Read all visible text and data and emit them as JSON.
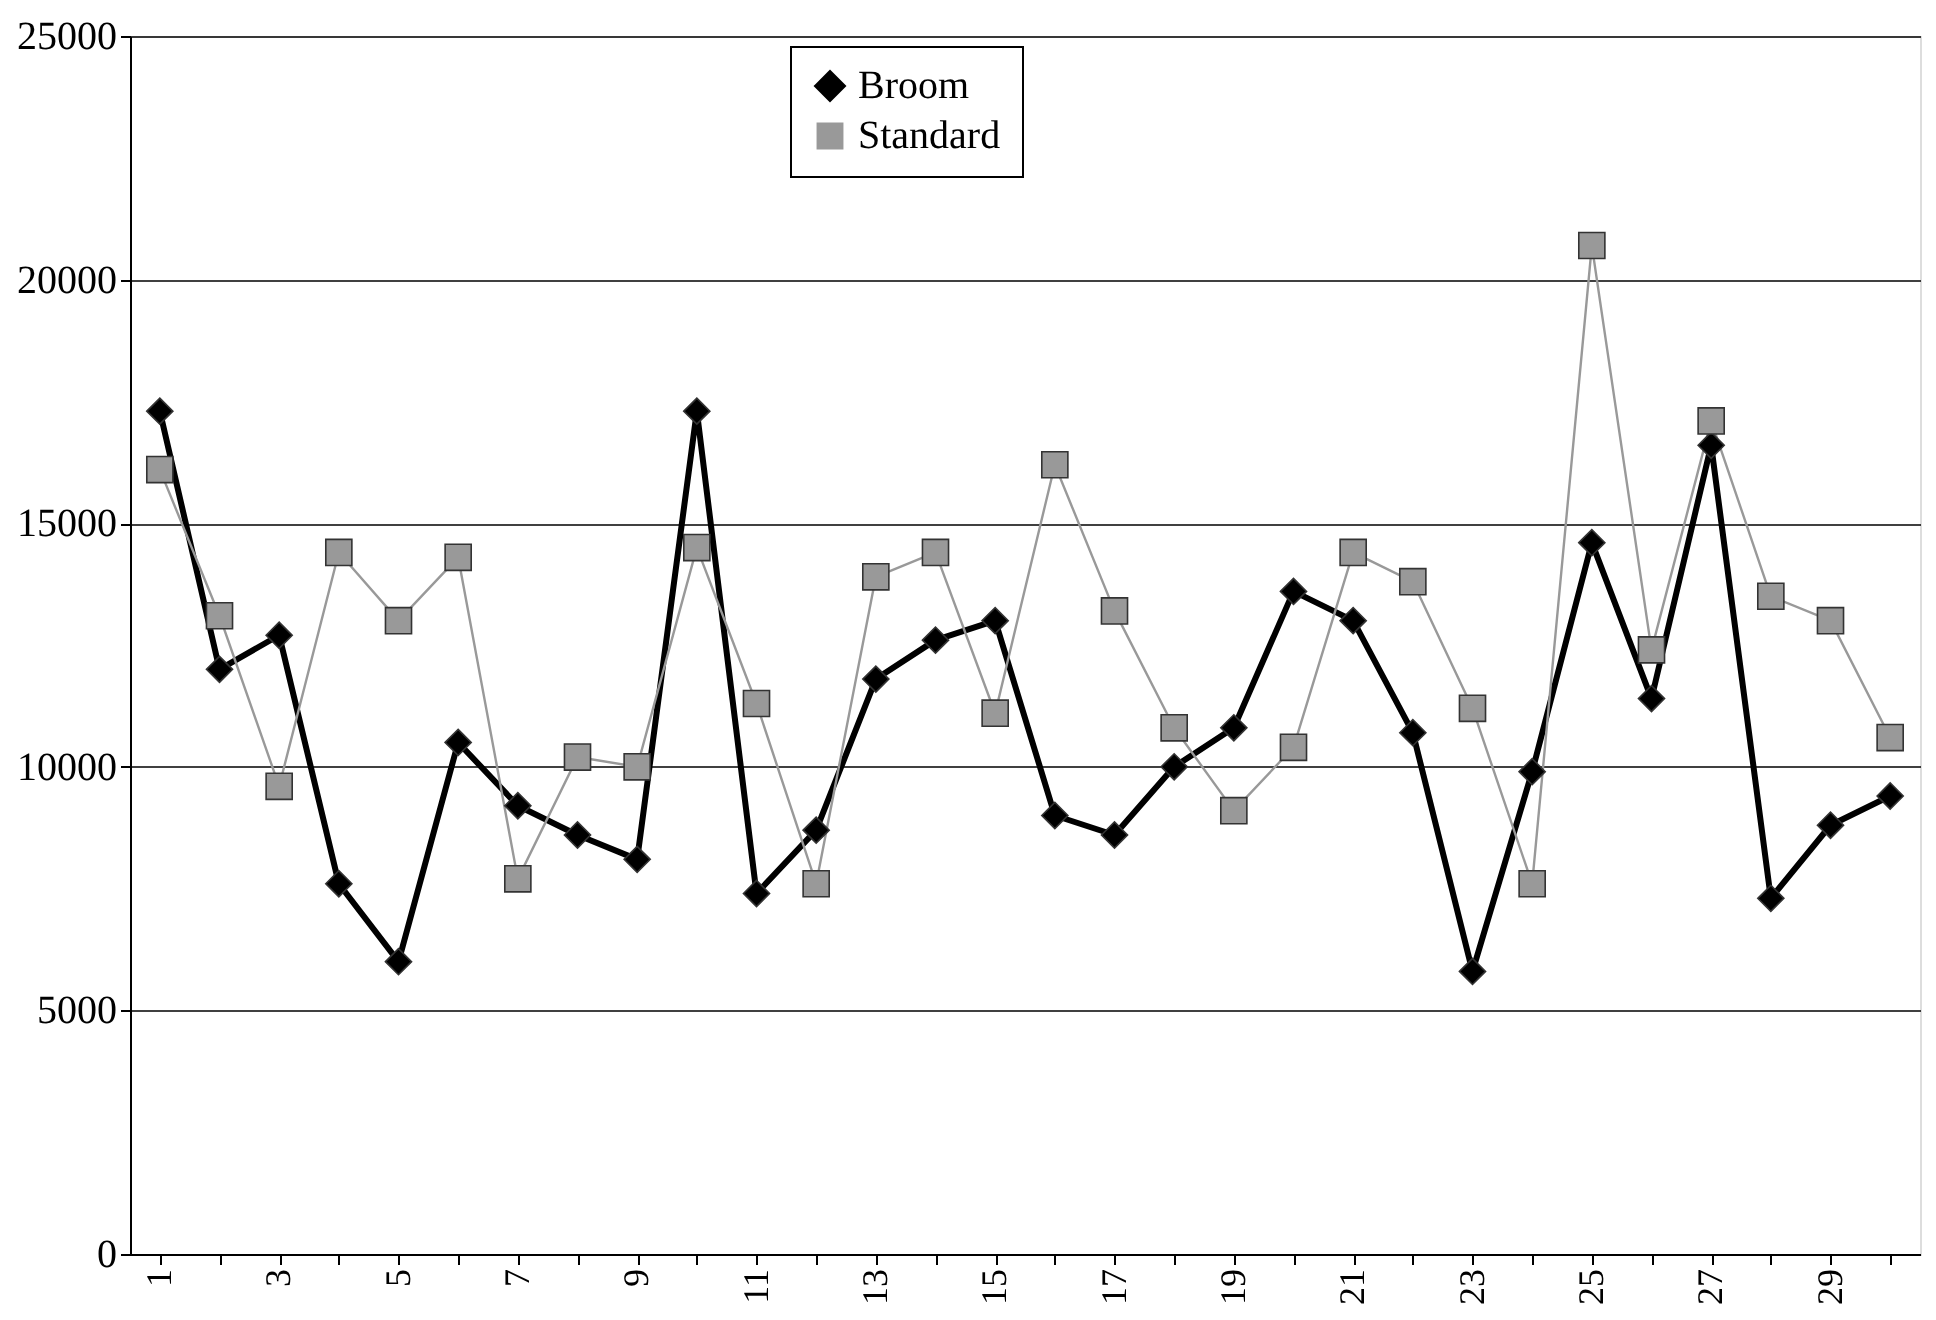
{
  "chart_data": {
    "type": "line",
    "categories": [
      "1",
      null,
      "3",
      null,
      "5",
      null,
      "7",
      null,
      "9",
      null,
      "11",
      null,
      "13",
      null,
      "15",
      null,
      "17",
      null,
      "19",
      null,
      "21",
      null,
      "23",
      null,
      "25",
      null,
      "27",
      null,
      "29",
      null
    ],
    "series": [
      {
        "name": "Broom",
        "color": "#000000",
        "marker": "diamond",
        "values": [
          17300,
          12000,
          12700,
          7600,
          6000,
          10500,
          9200,
          8600,
          8100,
          17300,
          7400,
          8700,
          11800,
          12600,
          13000,
          9000,
          8600,
          10000,
          10800,
          13600,
          13000,
          10700,
          5800,
          9900,
          14600,
          11400,
          16600,
          7300,
          8800,
          9400
        ]
      },
      {
        "name": "Standard",
        "color": "#999999",
        "marker": "square",
        "values": [
          16100,
          13100,
          9600,
          14400,
          13000,
          14300,
          7700,
          10200,
          10000,
          14500,
          11300,
          7600,
          13900,
          14400,
          11100,
          16200,
          13200,
          10800,
          9100,
          10400,
          14400,
          13800,
          11200,
          7600,
          20700,
          12400,
          17100,
          13500,
          13000,
          10600
        ]
      }
    ],
    "ylim": [
      0,
      25000
    ],
    "yticks": [
      0,
      5000,
      10000,
      15000,
      20000,
      25000
    ],
    "grid": "y",
    "legend": "top",
    "line_style": "solid"
  }
}
